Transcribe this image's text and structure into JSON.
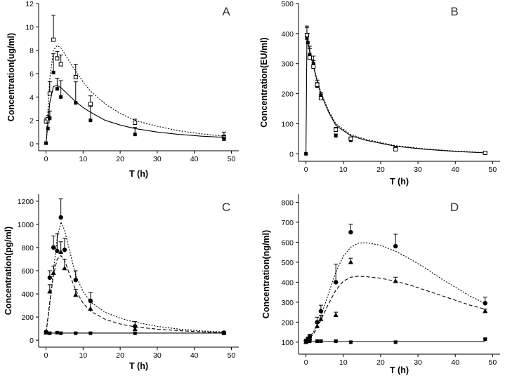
{
  "chart_data": [
    {
      "type": "scatter",
      "panel_label": "A",
      "xlabel": "T (h)",
      "ylabel": "Concentration(ug/ml)",
      "xlim": [
        -2,
        52
      ],
      "ylim": [
        -0.6,
        12
      ],
      "xticks": [
        0,
        10,
        20,
        30,
        40,
        50
      ],
      "yticks": [
        0,
        2,
        4,
        6,
        8,
        10,
        12
      ],
      "series": [
        {
          "name": "open squares",
          "marker": "open-square",
          "points": [
            {
              "x": 0,
              "y": 1.9,
              "err": 0.3
            },
            {
              "x": 0.5,
              "y": 2.1,
              "err": 0.3
            },
            {
              "x": 1,
              "y": 4.3,
              "err": 1.0
            },
            {
              "x": 2,
              "y": 8.9,
              "err": 2.1
            },
            {
              "x": 3,
              "y": 7.3,
              "err": 0.6
            },
            {
              "x": 4,
              "y": 6.8,
              "err": 0.8
            },
            {
              "x": 8,
              "y": 5.7,
              "err": 1.1
            },
            {
              "x": 12,
              "y": 3.4,
              "err": 0.7
            },
            {
              "x": 24,
              "y": 1.8,
              "err": 0.3
            },
            {
              "x": 48,
              "y": 0.6,
              "err": 0.4
            }
          ],
          "curve": {
            "style": "dotted",
            "x": [
              0,
              1,
              2,
              3,
              4,
              6,
              8,
              10,
              12,
              16,
              20,
              24,
              30,
              36,
              42,
              48
            ],
            "y": [
              0,
              5.5,
              8.0,
              8.4,
              8.2,
              7.2,
              6.2,
              5.3,
              4.5,
              3.4,
              2.6,
              2.0,
              1.5,
              1.1,
              0.85,
              0.65
            ]
          }
        },
        {
          "name": "filled squares",
          "marker": "filled-square",
          "points": [
            {
              "x": 0,
              "y": 0.05,
              "err": 0
            },
            {
              "x": 0.5,
              "y": 1.3,
              "err": 0.5
            },
            {
              "x": 1,
              "y": 2.2,
              "err": 0.6
            },
            {
              "x": 2,
              "y": 6.1,
              "err": 1.6
            },
            {
              "x": 3,
              "y": 4.7,
              "err": 0.9
            },
            {
              "x": 4,
              "y": 4.0,
              "err": 1.4
            },
            {
              "x": 8,
              "y": 3.5,
              "err": 1.8
            },
            {
              "x": 12,
              "y": 2.0,
              "err": 1.2
            },
            {
              "x": 24,
              "y": 0.8,
              "err": 0.6
            },
            {
              "x": 48,
              "y": 0.4,
              "err": 0.3
            }
          ],
          "curve": {
            "style": "solid",
            "x": [
              0,
              1,
              2,
              3,
              4,
              6,
              8,
              10,
              12,
              16,
              20,
              24,
              30,
              36,
              42,
              48
            ],
            "y": [
              0,
              3.5,
              4.9,
              5.0,
              4.8,
              4.2,
              3.6,
              3.1,
              2.7,
              2.0,
              1.6,
              1.3,
              1.0,
              0.8,
              0.65,
              0.55
            ]
          }
        }
      ]
    },
    {
      "type": "scatter",
      "panel_label": "B",
      "xlabel": "T (h)",
      "ylabel": "Concentration(EU/ml)",
      "xlim": [
        -2,
        52
      ],
      "ylim": [
        -25,
        500
      ],
      "xticks": [
        0,
        10,
        20,
        30,
        40,
        50
      ],
      "yticks": [
        0,
        100,
        200,
        300,
        400,
        500
      ],
      "series": [
        {
          "name": "filled squares",
          "marker": "filled-square",
          "points": [
            {
              "x": 0,
              "y": 0,
              "err": 0
            },
            {
              "x": 0.25,
              "y": 385,
              "err": 35
            },
            {
              "x": 0.5,
              "y": 370,
              "err": 30
            },
            {
              "x": 1,
              "y": 330,
              "err": 28
            },
            {
              "x": 2,
              "y": 300,
              "err": 25
            },
            {
              "x": 3,
              "y": 225,
              "err": 12
            },
            {
              "x": 4,
              "y": 195,
              "err": 10
            },
            {
              "x": 8,
              "y": 60,
              "err": 6
            },
            {
              "x": 12,
              "y": 45,
              "err": 5
            },
            {
              "x": 24,
              "y": 18,
              "err": 4
            },
            {
              "x": 48,
              "y": 2,
              "err": 2
            }
          ],
          "curve": {
            "style": "solid",
            "x": [
              0,
              0.25,
              1,
              2,
              3,
              4,
              6,
              8,
              12,
              16,
              24,
              32,
              40,
              48
            ],
            "y": [
              0,
              390,
              340,
              290,
              240,
              200,
              140,
              95,
              60,
              45,
              25,
              15,
              8,
              3
            ]
          }
        },
        {
          "name": "open squares",
          "marker": "open-square",
          "points": [
            {
              "x": 0.25,
              "y": 395,
              "err": 30
            },
            {
              "x": 1,
              "y": 320,
              "err": 30
            },
            {
              "x": 2,
              "y": 290,
              "err": 20
            },
            {
              "x": 3,
              "y": 230,
              "err": 15
            },
            {
              "x": 4,
              "y": 185,
              "err": 12
            },
            {
              "x": 8,
              "y": 80,
              "err": 8
            },
            {
              "x": 12,
              "y": 50,
              "err": 6
            },
            {
              "x": 24,
              "y": 15,
              "err": 4
            },
            {
              "x": 48,
              "y": 3,
              "err": 2
            }
          ],
          "curve": {
            "style": "dotted",
            "x": [
              0.25,
              1,
              2,
              3,
              4,
              6,
              8,
              12,
              16,
              24,
              32,
              40,
              48
            ],
            "y": [
              398,
              345,
              295,
              245,
              205,
              145,
              100,
              64,
              48,
              27,
              16,
              9,
              4
            ]
          }
        }
      ]
    },
    {
      "type": "scatter",
      "panel_label": "C",
      "xlabel": "T (h)",
      "ylabel": "Concentration(pg/ml)",
      "xlim": [
        -2,
        52
      ],
      "ylim": [
        -60,
        1260
      ],
      "xticks": [
        0,
        10,
        20,
        30,
        40,
        50
      ],
      "yticks": [
        0,
        200,
        400,
        600,
        800,
        1000,
        1200
      ],
      "series": [
        {
          "name": "filled circles",
          "marker": "filled-circle",
          "points": [
            {
              "x": 0,
              "y": 70,
              "err": 10
            },
            {
              "x": 1,
              "y": 540,
              "err": 60
            },
            {
              "x": 2,
              "y": 800,
              "err": 100
            },
            {
              "x": 3,
              "y": 770,
              "err": 150
            },
            {
              "x": 4,
              "y": 1060,
              "err": 160
            },
            {
              "x": 5,
              "y": 780,
              "err": 100
            },
            {
              "x": 8,
              "y": 520,
              "err": 80
            },
            {
              "x": 12,
              "y": 340,
              "err": 70
            },
            {
              "x": 24,
              "y": 120,
              "err": 40
            },
            {
              "x": 48,
              "y": 65,
              "err": 10
            }
          ],
          "curve": {
            "style": "dotted",
            "x": [
              0,
              1,
              2,
              3,
              4,
              5,
              6,
              8,
              10,
              12,
              16,
              20,
              24,
              30,
              36,
              42,
              48
            ],
            "y": [
              65,
              300,
              600,
              880,
              1020,
              950,
              820,
              560,
              420,
              330,
              240,
              190,
              155,
              120,
              95,
              80,
              70
            ]
          }
        },
        {
          "name": "filled triangles",
          "marker": "filled-triangle",
          "points": [
            {
              "x": 0,
              "y": 65,
              "err": 5
            },
            {
              "x": 1,
              "y": 420,
              "err": 60
            },
            {
              "x": 2,
              "y": 580,
              "err": 60
            },
            {
              "x": 4,
              "y": 760,
              "err": 90
            },
            {
              "x": 5,
              "y": 620,
              "err": 80
            },
            {
              "x": 8,
              "y": 390,
              "err": 50
            },
            {
              "x": 12,
              "y": 270,
              "err": 60
            },
            {
              "x": 24,
              "y": 95,
              "err": 30
            },
            {
              "x": 48,
              "y": 60,
              "err": 10
            }
          ],
          "curve": {
            "style": "dashed",
            "x": [
              0,
              1,
              2,
              3,
              4,
              5,
              6,
              8,
              10,
              12,
              16,
              20,
              24,
              30,
              36,
              42,
              48
            ],
            "y": [
              65,
              330,
              560,
              700,
              730,
              690,
              600,
              430,
              320,
              250,
              180,
              140,
              115,
              95,
              82,
              72,
              65
            ]
          }
        },
        {
          "name": "filled squares",
          "marker": "filled-square",
          "points": [
            {
              "x": 0,
              "y": 70,
              "err": 5
            },
            {
              "x": 1,
              "y": 60,
              "err": 5
            },
            {
              "x": 3,
              "y": 65,
              "err": 5
            },
            {
              "x": 4,
              "y": 60,
              "err": 5
            },
            {
              "x": 8,
              "y": 60,
              "err": 5
            },
            {
              "x": 12,
              "y": 60,
              "err": 5
            },
            {
              "x": 24,
              "y": 60,
              "err": 5
            },
            {
              "x": 48,
              "y": 65,
              "err": 5
            }
          ],
          "curve": {
            "style": "solid",
            "x": [
              0,
              48
            ],
            "y": [
              62,
              62
            ]
          }
        }
      ]
    },
    {
      "type": "scatter",
      "panel_label": "D",
      "xlabel": "T (h)",
      "ylabel": "Concentration(ng/ml)",
      "xlim": [
        -2,
        52
      ],
      "ylim": [
        40,
        840
      ],
      "xticks": [
        0,
        10,
        20,
        30,
        40,
        50
      ],
      "yticks": [
        100,
        200,
        300,
        400,
        500,
        600,
        700,
        800
      ],
      "series": [
        {
          "name": "filled circles",
          "marker": "filled-circle",
          "points": [
            {
              "x": 0,
              "y": 105,
              "err": 10
            },
            {
              "x": 0.5,
              "y": 115,
              "err": 10
            },
            {
              "x": 1,
              "y": 125,
              "err": 15
            },
            {
              "x": 3,
              "y": 200,
              "err": 25
            },
            {
              "x": 4,
              "y": 255,
              "err": 30
            },
            {
              "x": 8,
              "y": 400,
              "err": 90
            },
            {
              "x": 12,
              "y": 650,
              "err": 40
            },
            {
              "x": 24,
              "y": 580,
              "err": 60
            },
            {
              "x": 48,
              "y": 295,
              "err": 30
            }
          ],
          "curve": {
            "style": "dotted",
            "x": [
              0,
              2,
              4,
              6,
              8,
              10,
              12,
              14,
              16,
              20,
              24,
              28,
              32,
              36,
              40,
              44,
              48
            ],
            "y": [
              110,
              150,
              230,
              340,
              450,
              530,
              575,
              595,
              598,
              585,
              555,
              515,
              470,
              420,
              375,
              330,
              295
            ]
          }
        },
        {
          "name": "filled triangles",
          "marker": "filled-triangle",
          "points": [
            {
              "x": 0,
              "y": 100,
              "err": 10
            },
            {
              "x": 1,
              "y": 120,
              "err": 15
            },
            {
              "x": 3,
              "y": 180,
              "err": 20
            },
            {
              "x": 4,
              "y": 215,
              "err": 20
            },
            {
              "x": 8,
              "y": 235,
              "err": 15
            },
            {
              "x": 12,
              "y": 500,
              "err": 20
            },
            {
              "x": 24,
              "y": 405,
              "err": 20
            },
            {
              "x": 48,
              "y": 255,
              "err": 10
            }
          ],
          "curve": {
            "style": "dashed",
            "x": [
              0,
              2,
              4,
              6,
              8,
              10,
              12,
              14,
              16,
              20,
              24,
              28,
              32,
              36,
              40,
              44,
              48
            ],
            "y": [
              105,
              140,
              210,
              290,
              360,
              405,
              425,
              430,
              428,
              420,
              405,
              385,
              360,
              335,
              310,
              285,
              265
            ]
          }
        },
        {
          "name": "filled squares",
          "marker": "filled-square",
          "points": [
            {
              "x": 0,
              "y": 100,
              "err": 5
            },
            {
              "x": 1,
              "y": 105,
              "err": 5
            },
            {
              "x": 3,
              "y": 105,
              "err": 5
            },
            {
              "x": 4,
              "y": 105,
              "err": 5
            },
            {
              "x": 8,
              "y": 105,
              "err": 5
            },
            {
              "x": 12,
              "y": 100,
              "err": 5
            },
            {
              "x": 24,
              "y": 100,
              "err": 5
            },
            {
              "x": 48,
              "y": 115,
              "err": 5
            }
          ],
          "curve": {
            "style": "solid",
            "x": [
              0,
              48
            ],
            "y": [
              103,
              103
            ]
          }
        }
      ]
    }
  ]
}
